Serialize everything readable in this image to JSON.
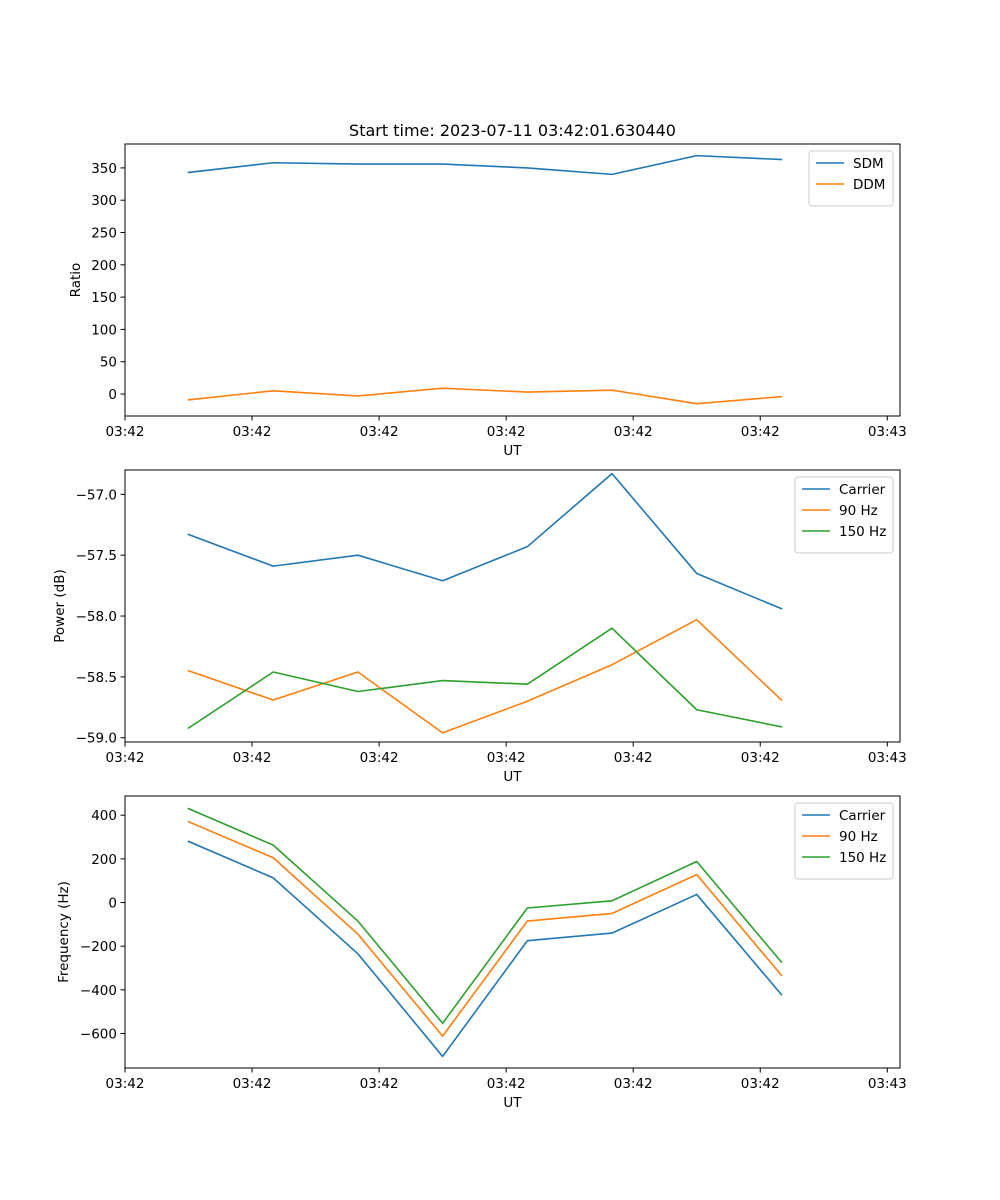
{
  "figure": {
    "title": "Start time: 2023-07-11 03:42:01.630440"
  },
  "colors": {
    "blue": "#1f77b4",
    "orange": "#ff7f0e",
    "green": "#2ca02c",
    "axis": "#000000",
    "legend_border": "#cccccc"
  },
  "chart_data": [
    {
      "type": "line",
      "name": "ratio",
      "title": "Start time: 2023-07-11 03:42:01.630440",
      "xlabel": "UT",
      "ylabel": "Ratio",
      "x_index": [
        0,
        1,
        2,
        3,
        4,
        5,
        6,
        7
      ],
      "xlim": [
        -0.75,
        8.4
      ],
      "x_ticks": [
        -0.75,
        0.75,
        2.25,
        3.75,
        5.25,
        6.75,
        8.25
      ],
      "x_tick_labels": [
        "03:42",
        "03:42",
        "03:42",
        "03:42",
        "03:42",
        "03:42",
        "03:42"
      ],
      "x_tick_last_label": "03:43",
      "ylim": [
        -34,
        387
      ],
      "y_ticks": [
        0,
        50,
        100,
        150,
        200,
        250,
        300,
        350
      ],
      "legend": "upper right",
      "series": [
        {
          "name": "SDM",
          "color": "#1f77b4",
          "values": [
            343,
            358,
            356,
            356,
            350,
            340,
            369,
            363
          ]
        },
        {
          "name": "DDM",
          "color": "#ff7f0e",
          "values": [
            -9,
            5,
            -3,
            9,
            3,
            6,
            -15,
            -4
          ]
        }
      ]
    },
    {
      "type": "line",
      "name": "power",
      "title": "",
      "xlabel": "UT",
      "ylabel": "Power (dB)",
      "x_index": [
        0,
        1,
        2,
        3,
        4,
        5,
        6,
        7
      ],
      "xlim": [
        -0.75,
        8.4
      ],
      "x_ticks": [
        -0.75,
        0.75,
        2.25,
        3.75,
        5.25,
        6.75,
        8.25
      ],
      "x_tick_labels": [
        "03:42",
        "03:42",
        "03:42",
        "03:42",
        "03:42",
        "03:42",
        "03:42"
      ],
      "x_tick_last_label": "03:43",
      "ylim": [
        -59.035,
        -56.8
      ],
      "y_ticks": [
        -59.0,
        -58.5,
        -58.0,
        -57.5,
        -57.0
      ],
      "y_tick_labels": [
        "−59.0",
        "−58.5",
        "−58.0",
        "−57.5",
        "−57.0"
      ],
      "legend": "upper right",
      "series": [
        {
          "name": "Carrier",
          "color": "#1f77b4",
          "values": [
            -57.33,
            -57.59,
            -57.5,
            -57.71,
            -57.43,
            -56.83,
            -57.65,
            -57.94
          ]
        },
        {
          "name": "90 Hz",
          "color": "#ff7f0e",
          "values": [
            -58.45,
            -58.69,
            -58.46,
            -58.96,
            -58.7,
            -58.4,
            -58.03,
            -58.69
          ]
        },
        {
          "name": "150 Hz",
          "color": "#2ca02c",
          "values": [
            -58.92,
            -58.46,
            -58.62,
            -58.53,
            -58.56,
            -58.1,
            -58.77,
            -58.91
          ]
        }
      ]
    },
    {
      "type": "line",
      "name": "frequency",
      "title": "",
      "xlabel": "UT",
      "ylabel": "Frequency (Hz)",
      "x_index": [
        0,
        1,
        2,
        3,
        4,
        5,
        6,
        7
      ],
      "xlim": [
        -0.75,
        8.4
      ],
      "x_ticks": [
        -0.75,
        0.75,
        2.25,
        3.75,
        5.25,
        6.75,
        8.25
      ],
      "x_tick_labels": [
        "03:42",
        "03:42",
        "03:42",
        "03:42",
        "03:42",
        "03:42",
        "03:42"
      ],
      "x_tick_last_label": "03:43",
      "ylim": [
        -758,
        488
      ],
      "y_ticks": [
        -600,
        -400,
        -200,
        0,
        200,
        400
      ],
      "y_tick_labels": [
        "−600",
        "−400",
        "−200",
        "0",
        "200",
        "400"
      ],
      "legend": "upper right",
      "series": [
        {
          "name": "Carrier",
          "color": "#1f77b4",
          "values": [
            280,
            113,
            -235,
            -705,
            -175,
            -140,
            37,
            -422
          ]
        },
        {
          "name": "90 Hz",
          "color": "#ff7f0e",
          "values": [
            370,
            205,
            -145,
            -612,
            -85,
            -50,
            128,
            -333
          ]
        },
        {
          "name": "150 Hz",
          "color": "#2ca02c",
          "values": [
            430,
            263,
            -85,
            -553,
            -25,
            8,
            188,
            -273
          ]
        }
      ]
    }
  ]
}
